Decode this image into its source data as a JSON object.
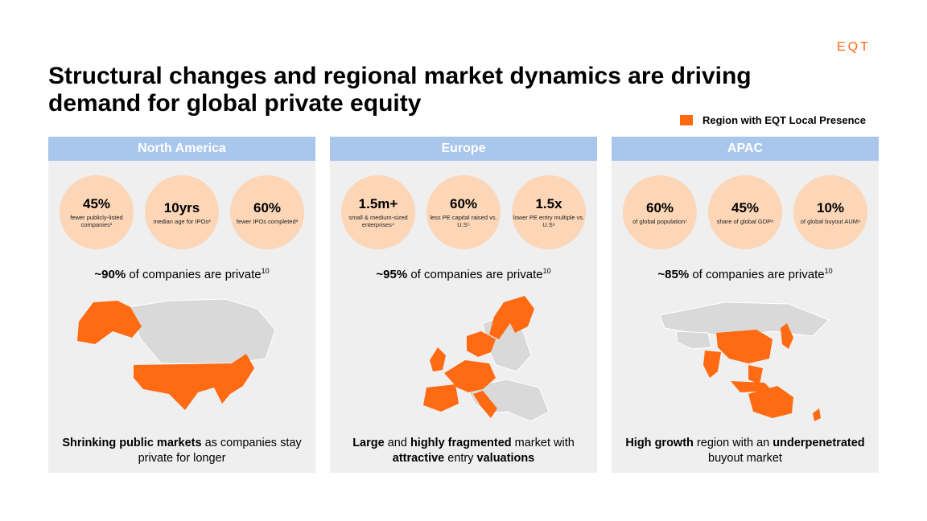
{
  "logo": "EQT",
  "title": "Structural changes and regional market dynamics are driving demand for global private equity",
  "legend": {
    "label": "Region with EQT Local Presence",
    "color": "#ff6a13"
  },
  "panels": [
    {
      "header": "North America",
      "stats": [
        {
          "value": "45%",
          "label": "fewer publicly-listed companies¹"
        },
        {
          "value": "10yrs",
          "label": "median age for IPOs²"
        },
        {
          "value": "60%",
          "label": "fewer IPOs completed³"
        }
      ],
      "private_bold": "~90%",
      "private_text": " of companies are private",
      "private_sup": "10",
      "caption": [
        {
          "text": "Shrinking public markets",
          "bold": true
        },
        {
          "text": " as companies stay private for longer",
          "bold": false
        }
      ]
    },
    {
      "header": "Europe",
      "stats": [
        {
          "value": "1.5m+",
          "label": "small & medium-sized enterprises⁴"
        },
        {
          "value": "60%",
          "label": "less PE capital raised vs. U.S⁵"
        },
        {
          "value": "1.5x",
          "label": "lower PE entry multiple vs. U.S⁶"
        }
      ],
      "private_bold": "~95%",
      "private_text": " of companies are private",
      "private_sup": "10",
      "caption": [
        {
          "text": "Large",
          "bold": true
        },
        {
          "text": " and ",
          "bold": false
        },
        {
          "text": "highly fragmented",
          "bold": true
        },
        {
          "text": " market with ",
          "bold": false
        },
        {
          "text": "attractive",
          "bold": true
        },
        {
          "text": " entry ",
          "bold": false
        },
        {
          "text": "valuations",
          "bold": true
        }
      ]
    },
    {
      "header": "APAC",
      "stats": [
        {
          "value": "60%",
          "label": "of global population⁷"
        },
        {
          "value": "45%",
          "label": "share of global GDP⁸"
        },
        {
          "value": "10%",
          "label": "of global buyout AUM⁹"
        }
      ],
      "private_bold": "~85%",
      "private_text": " of companies are private",
      "private_sup": "10",
      "caption": [
        {
          "text": "High growth",
          "bold": true
        },
        {
          "text": " region with an ",
          "bold": false
        },
        {
          "text": "underpenetrated",
          "bold": true
        },
        {
          "text": " buyout market",
          "bold": false
        }
      ]
    }
  ],
  "colors": {
    "accent": "#ff6a13",
    "header": "#a9c6ec",
    "circle": "#fcd6b7",
    "panel": "#efefef",
    "land": "#d9d9d9"
  }
}
